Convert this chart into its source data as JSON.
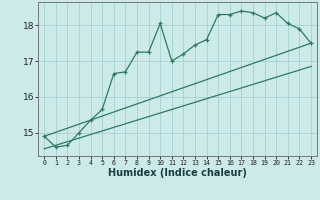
{
  "xlabel": "Humidex (Indice chaleur)",
  "x_values": [
    0,
    1,
    2,
    3,
    4,
    5,
    6,
    7,
    8,
    9,
    10,
    11,
    12,
    13,
    14,
    15,
    16,
    17,
    18,
    19,
    20,
    21,
    22,
    23
  ],
  "main_y": [
    14.9,
    14.6,
    14.65,
    15.0,
    15.35,
    15.65,
    16.65,
    16.7,
    17.25,
    17.25,
    18.05,
    17.0,
    17.2,
    17.45,
    17.6,
    18.3,
    18.3,
    18.4,
    18.35,
    18.2,
    18.35,
    18.05,
    17.9,
    17.5
  ],
  "trend1_x": [
    0,
    23
  ],
  "trend1_y": [
    14.9,
    17.5
  ],
  "trend2_x": [
    0,
    23
  ],
  "trend2_y": [
    14.55,
    16.85
  ],
  "line_color": "#2D7A5F",
  "background_color": "#cceaea",
  "grid_color": "#aad4d4",
  "ylim": [
    14.35,
    18.65
  ],
  "xlim": [
    -0.5,
    23.5
  ],
  "yticks": [
    15,
    16,
    17,
    18
  ],
  "xticks": [
    0,
    1,
    2,
    3,
    4,
    5,
    6,
    7,
    8,
    9,
    10,
    11,
    12,
    13,
    14,
    15,
    16,
    17,
    18,
    19,
    20,
    21,
    22,
    23
  ]
}
